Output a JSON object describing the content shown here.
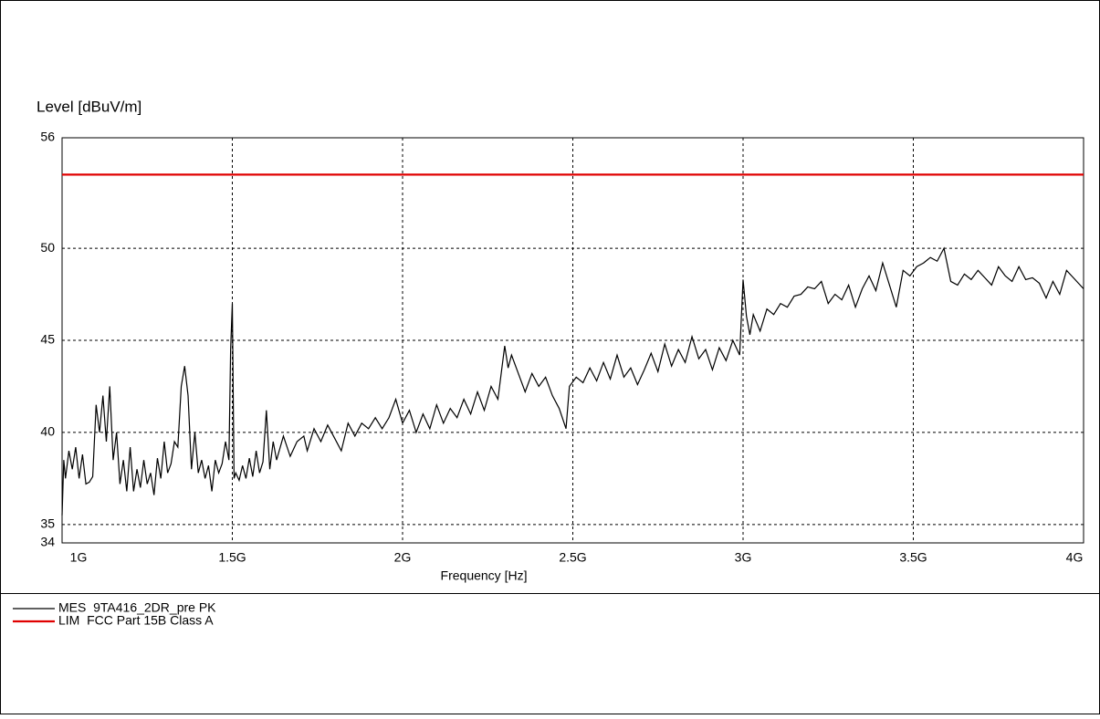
{
  "chart_data": {
    "type": "line",
    "ylabel": "Level [dBuV/m]",
    "xlabel": "Frequency [Hz]",
    "xlim": [
      1000000000,
      4000000000
    ],
    "xticks": [
      {
        "value": 1000000000,
        "label": "1G"
      },
      {
        "value": 1500000000,
        "label": "1.5G"
      },
      {
        "value": 2000000000,
        "label": "2G"
      },
      {
        "value": 2500000000,
        "label": "2.5G"
      },
      {
        "value": 3000000000,
        "label": "3G"
      },
      {
        "value": 3500000000,
        "label": "3.5G"
      },
      {
        "value": 4000000000,
        "label": "4G"
      }
    ],
    "ylim": [
      34,
      56
    ],
    "yticks": [
      34,
      35,
      40,
      45,
      50,
      56
    ],
    "grid": true,
    "series": [
      {
        "name": "MES  9TA416_2DR_pre PK",
        "color": "#000000",
        "x": [
          1000000000.0,
          1005000000.0,
          1010000000.0,
          1020000000.0,
          1030000000.0,
          1040000000.0,
          1050000000.0,
          1060000000.0,
          1070000000.0,
          1080000000.0,
          1090000000.0,
          1100000000.0,
          1110000000.0,
          1120000000.0,
          1130000000.0,
          1140000000.0,
          1150000000.0,
          1160000000.0,
          1170000000.0,
          1180000000.0,
          1190000000.0,
          1200000000.0,
          1210000000.0,
          1220000000.0,
          1230000000.0,
          1240000000.0,
          1250000000.0,
          1260000000.0,
          1270000000.0,
          1280000000.0,
          1290000000.0,
          1300000000.0,
          1310000000.0,
          1320000000.0,
          1330000000.0,
          1340000000.0,
          1350000000.0,
          1360000000.0,
          1370000000.0,
          1380000000.0,
          1390000000.0,
          1400000000.0,
          1410000000.0,
          1420000000.0,
          1430000000.0,
          1440000000.0,
          1450000000.0,
          1460000000.0,
          1470000000.0,
          1480000000.0,
          1490000000.0,
          1495000000.0,
          1500000000.0,
          1505000000.0,
          1510000000.0,
          1520000000.0,
          1530000000.0,
          1540000000.0,
          1550000000.0,
          1560000000.0,
          1570000000.0,
          1580000000.0,
          1590000000.0,
          1600000000.0,
          1610000000.0,
          1620000000.0,
          1630000000.0,
          1650000000.0,
          1670000000.0,
          1690000000.0,
          1710000000.0,
          1720000000.0,
          1740000000.0,
          1760000000.0,
          1780000000.0,
          1800000000.0,
          1820000000.0,
          1840000000.0,
          1860000000.0,
          1880000000.0,
          1900000000.0,
          1920000000.0,
          1940000000.0,
          1960000000.0,
          1980000000.0,
          2000000000.0,
          2020000000.0,
          2040000000.0,
          2060000000.0,
          2080000000.0,
          2100000000.0,
          2120000000.0,
          2140000000.0,
          2160000000.0,
          2180000000.0,
          2200000000.0,
          2220000000.0,
          2240000000.0,
          2260000000.0,
          2280000000.0,
          2300000000.0,
          2310000000.0,
          2320000000.0,
          2340000000.0,
          2360000000.0,
          2380000000.0,
          2400000000.0,
          2420000000.0,
          2440000000.0,
          2460000000.0,
          2480000000.0,
          2490000000.0,
          2510000000.0,
          2530000000.0,
          2550000000.0,
          2570000000.0,
          2590000000.0,
          2610000000.0,
          2630000000.0,
          2650000000.0,
          2670000000.0,
          2690000000.0,
          2710000000.0,
          2730000000.0,
          2750000000.0,
          2770000000.0,
          2790000000.0,
          2810000000.0,
          2830000000.0,
          2850000000.0,
          2870000000.0,
          2890000000.0,
          2910000000.0,
          2930000000.0,
          2950000000.0,
          2970000000.0,
          2990000000.0,
          3000000000.0,
          3010000000.0,
          3020000000.0,
          3030000000.0,
          3050000000.0,
          3070000000.0,
          3090000000.0,
          3110000000.0,
          3130000000.0,
          3150000000.0,
          3170000000.0,
          3190000000.0,
          3210000000.0,
          3230000000.0,
          3250000000.0,
          3270000000.0,
          3290000000.0,
          3310000000.0,
          3330000000.0,
          3350000000.0,
          3370000000.0,
          3390000000.0,
          3410000000.0,
          3430000000.0,
          3450000000.0,
          3470000000.0,
          3490000000.0,
          3510000000.0,
          3530000000.0,
          3550000000.0,
          3570000000.0,
          3590000000.0,
          3610000000.0,
          3630000000.0,
          3650000000.0,
          3670000000.0,
          3690000000.0,
          3710000000.0,
          3730000000.0,
          3750000000.0,
          3770000000.0,
          3790000000.0,
          3810000000.0,
          3830000000.0,
          3850000000.0,
          3870000000.0,
          3890000000.0,
          3910000000.0,
          3930000000.0,
          3950000000.0,
          3970000000.0,
          4000000000.0
        ],
        "values": [
          35.5,
          38.5,
          37.5,
          39,
          38,
          39.2,
          37.5,
          38.8,
          37.2,
          37.3,
          37.6,
          41.5,
          40,
          42,
          39.5,
          42.5,
          38.5,
          40,
          37.2,
          38.5,
          36.8,
          39.2,
          36.8,
          38,
          37,
          38.5,
          37.2,
          37.8,
          36.6,
          38.6,
          37.5,
          39.5,
          37.8,
          38.3,
          39.5,
          39.2,
          42.5,
          43.6,
          42,
          38,
          40,
          37.8,
          38.5,
          37.5,
          38.2,
          36.8,
          38.5,
          37.8,
          38.3,
          39.5,
          38.5,
          44.5,
          47,
          37.5,
          37.8,
          37.4,
          38.2,
          37.5,
          38.6,
          37.6,
          39,
          37.8,
          38.4,
          41.2,
          38,
          39.5,
          38.5,
          39.8,
          38.7,
          39.5,
          39.8,
          39,
          40.2,
          39.5,
          40.4,
          39.7,
          39,
          40.5,
          39.8,
          40.5,
          40.2,
          40.8,
          40.2,
          40.8,
          41.8,
          40.5,
          41.2,
          40,
          41,
          40.2,
          41.5,
          40.5,
          41.3,
          40.8,
          41.8,
          41,
          42.2,
          41.2,
          42.5,
          41.8,
          44.7,
          43.5,
          44.2,
          43.2,
          42.2,
          43.2,
          42.5,
          43,
          42,
          41.3,
          40.2,
          42.5,
          43,
          42.7,
          43.5,
          42.8,
          43.8,
          42.9,
          44.2,
          43,
          43.5,
          42.6,
          43.4,
          44.3,
          43.3,
          44.8,
          43.6,
          44.5,
          43.8,
          45.2,
          44,
          44.5,
          43.4,
          44.6,
          43.9,
          45,
          44.2,
          48.3,
          46.3,
          45.3,
          46.4,
          45.5,
          46.7,
          46.4,
          47,
          46.8,
          47.4,
          47.5,
          47.9,
          47.8,
          48.2,
          47,
          47.5,
          47.2,
          48,
          46.8,
          47.8,
          48.5,
          47.7,
          49.2,
          48,
          46.8,
          48.8,
          48.5,
          49,
          49.2,
          49.5,
          49.3,
          50,
          48.2,
          48,
          48.6,
          48.3,
          48.8,
          48.4,
          48,
          49,
          48.5,
          48.2,
          49,
          48.3,
          48.4,
          48.1,
          47.3,
          48.2,
          47.5,
          48.8,
          48.4,
          47.8
        ]
      },
      {
        "name": "LIM  FCC Part 15B Class A",
        "color": "#e00000",
        "x": [
          1000000000,
          4000000000
        ],
        "values": [
          54,
          54
        ]
      }
    ]
  }
}
